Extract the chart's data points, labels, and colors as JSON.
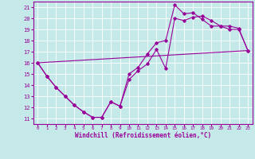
{
  "xlabel": "Windchill (Refroidissement éolien,°C)",
  "bg_color": "#c5e8e8",
  "line_color": "#990099",
  "grid_color": "#ffffff",
  "xlim": [
    -0.5,
    23.5
  ],
  "ylim": [
    10.5,
    21.5
  ],
  "yticks": [
    11,
    12,
    13,
    14,
    15,
    16,
    17,
    18,
    19,
    20,
    21
  ],
  "xticks": [
    0,
    1,
    2,
    3,
    4,
    5,
    6,
    7,
    8,
    9,
    10,
    11,
    12,
    13,
    14,
    15,
    16,
    17,
    18,
    19,
    20,
    21,
    22,
    23
  ],
  "series1_x": [
    0,
    1,
    2,
    3,
    4,
    5,
    6,
    7,
    8,
    9,
    10,
    11,
    12,
    13,
    14,
    15,
    16,
    17,
    18,
    19,
    20,
    21,
    22,
    23
  ],
  "series1_y": [
    16.0,
    14.8,
    13.8,
    13.0,
    12.2,
    11.6,
    11.1,
    11.1,
    12.5,
    12.1,
    14.5,
    15.3,
    15.9,
    17.2,
    15.5,
    20.0,
    19.8,
    20.1,
    20.2,
    19.8,
    19.3,
    19.0,
    19.0,
    17.1
  ],
  "series2_x": [
    0,
    1,
    2,
    3,
    4,
    5,
    6,
    7,
    8,
    9,
    10,
    11,
    12,
    13,
    14,
    15,
    16,
    17,
    18,
    19,
    20,
    21,
    22,
    23
  ],
  "series2_y": [
    16.0,
    14.8,
    13.8,
    13.0,
    12.2,
    11.6,
    11.1,
    11.1,
    12.5,
    12.1,
    15.0,
    15.6,
    16.8,
    17.8,
    18.0,
    21.2,
    20.4,
    20.5,
    19.9,
    19.3,
    19.3,
    19.3,
    19.1,
    17.1
  ],
  "series3_x": [
    0,
    23
  ],
  "series3_y": [
    16.0,
    17.1
  ]
}
